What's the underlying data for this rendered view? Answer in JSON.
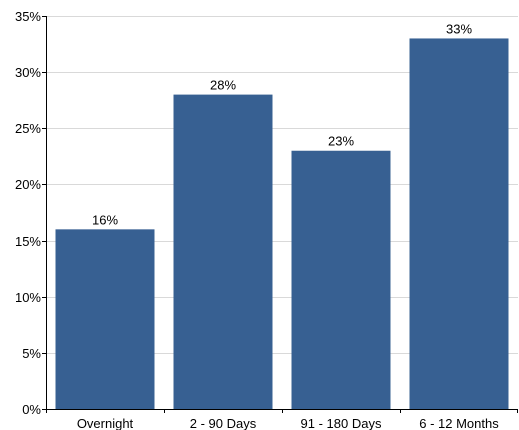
{
  "chart_data": {
    "type": "bar",
    "categories": [
      "Overnight",
      "2 - 90 Days",
      "91 - 180 Days",
      "6 - 12 Months"
    ],
    "values": [
      16,
      28,
      23,
      33
    ],
    "value_labels": [
      "16%",
      "28%",
      "23%",
      "33%"
    ],
    "y_ticks": [
      0,
      5,
      10,
      15,
      20,
      25,
      30,
      35
    ],
    "y_tick_labels": [
      "0%",
      "5%",
      "10%",
      "15%",
      "20%",
      "25%",
      "30%",
      "35%"
    ],
    "ylim": [
      0,
      35
    ],
    "grid": true,
    "bar_color": "#376092",
    "title": "",
    "xlabel": "",
    "ylabel": ""
  }
}
